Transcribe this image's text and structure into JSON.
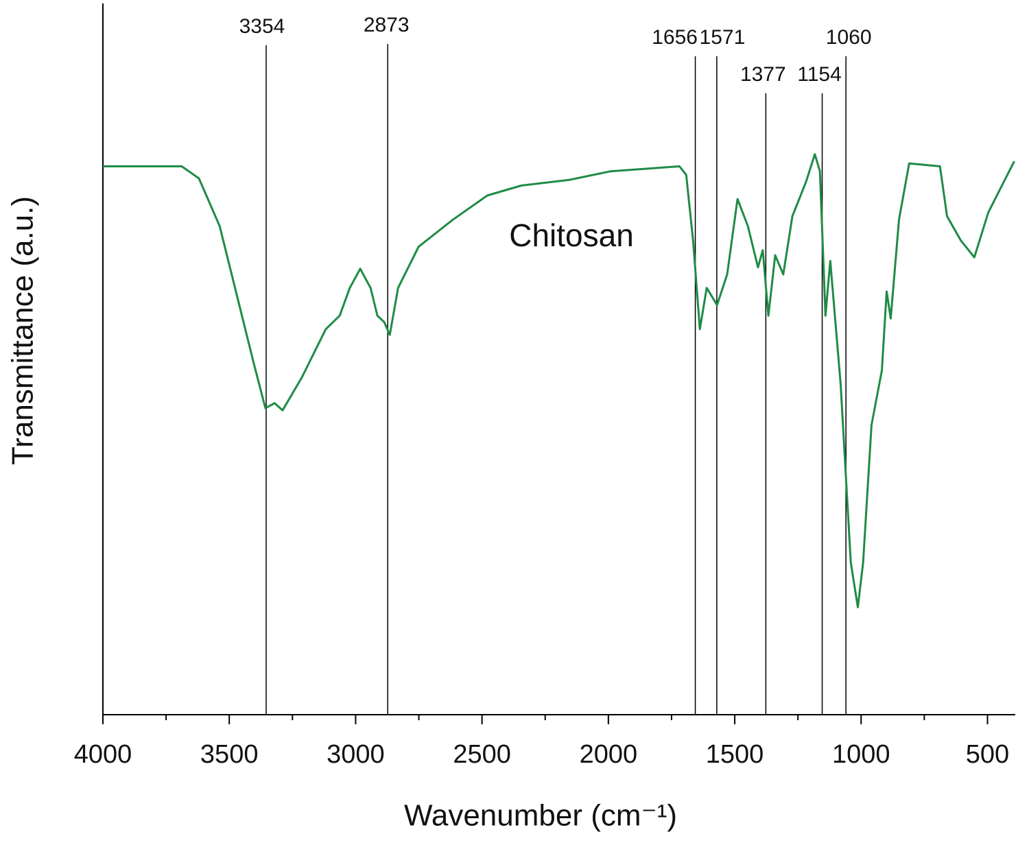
{
  "chart_data": {
    "type": "line",
    "x_label": "Wavenumber (cm⁻¹)",
    "y_label": "Transmittance (a.u.)",
    "annotation": "Chitosan",
    "xlim": [
      4000,
      390
    ],
    "ylim": [
      0,
      100
    ],
    "xticks": [
      4000,
      3500,
      3000,
      2500,
      2000,
      1500,
      1000,
      500
    ],
    "xminorticks": [
      3750,
      3250,
      2750,
      2250,
      1750,
      1250,
      750
    ],
    "peak_lines": [
      3354,
      2873,
      1656,
      1571,
      1377,
      1154,
      1060
    ],
    "series": [
      {
        "name": "Chitosan",
        "color": "#1e8b45",
        "x": [
          4000,
          3688,
          3620,
          3538,
          3457,
          3403,
          3357,
          3321,
          3289,
          3213,
          3118,
          3063,
          3023,
          2982,
          2941,
          2914,
          2887,
          2865,
          2832,
          2751,
          2615,
          2479,
          2344,
          2154,
          1991,
          1719,
          1692,
          1665,
          1638,
          1611,
          1570,
          1530,
          1489,
          1448,
          1408,
          1389,
          1367,
          1340,
          1308,
          1272,
          1218,
          1183,
          1163,
          1141,
          1122,
          1081,
          1041,
          1013,
          992,
          959,
          918,
          899,
          883,
          850,
          810,
          688,
          660,
          606,
          552,
          497,
          443,
          394
        ],
        "values": [
          77.1,
          77.1,
          75.4,
          68.7,
          57.1,
          49.4,
          43.1,
          43.8,
          42.8,
          47.4,
          54.2,
          56.1,
          60.0,
          62.7,
          60.0,
          56.1,
          55.2,
          53.4,
          60.0,
          65.8,
          69.6,
          73.0,
          74.4,
          75.2,
          76.4,
          77.1,
          75.9,
          66.7,
          54.2,
          60.0,
          57.6,
          61.9,
          72.5,
          68.7,
          62.9,
          65.3,
          56.1,
          64.6,
          61.9,
          70.1,
          74.9,
          78.8,
          76.4,
          56.1,
          63.8,
          46.5,
          21.4,
          15.1,
          21.4,
          40.7,
          48.4,
          59.5,
          55.7,
          69.6,
          77.5,
          77.1,
          70.1,
          66.7,
          64.3,
          70.6,
          74.4,
          77.8
        ]
      }
    ]
  }
}
